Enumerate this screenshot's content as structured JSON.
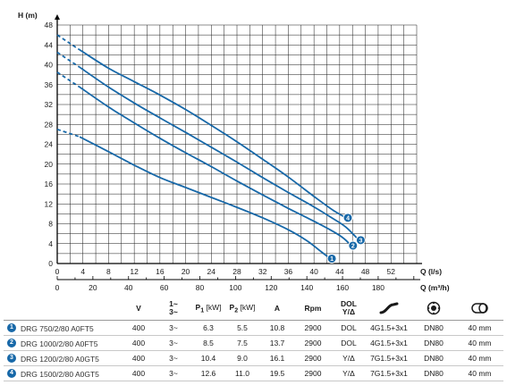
{
  "chart_data": {
    "type": "line",
    "ylabel": "H (m)",
    "xlabel": "Q (l/s)",
    "x2label": "Q (m³/h)",
    "xlim": [
      0,
      56
    ],
    "ylim": [
      0,
      48
    ],
    "xticks": [
      0,
      4,
      8,
      12,
      16,
      20,
      24,
      28,
      32,
      36,
      40,
      44,
      48,
      52
    ],
    "yticks": [
      0,
      4,
      8,
      12,
      16,
      20,
      24,
      28,
      32,
      36,
      40,
      44,
      48
    ],
    "x2ticks": [
      0,
      20,
      40,
      60,
      80,
      100,
      120,
      140,
      160,
      180
    ],
    "grid": true,
    "series": [
      {
        "badge": "1",
        "dashed": [
          [
            0,
            27
          ],
          [
            3.5,
            25.5
          ]
        ],
        "points": [
          [
            3.5,
            25.5
          ],
          [
            8,
            22.5
          ],
          [
            12,
            19.8
          ],
          [
            16,
            17.3
          ],
          [
            20,
            15.3
          ],
          [
            24,
            13.3
          ],
          [
            28,
            11.3
          ],
          [
            32,
            9.2
          ],
          [
            36,
            6.8
          ],
          [
            39,
            4.5
          ],
          [
            41,
            2.5
          ],
          [
            42.5,
            1.0
          ]
        ]
      },
      {
        "badge": "2",
        "dashed": [
          [
            0,
            38.5
          ],
          [
            3.5,
            35.5
          ]
        ],
        "points": [
          [
            3.5,
            35.5
          ],
          [
            8,
            31.5
          ],
          [
            12,
            28.3
          ],
          [
            16,
            25.2
          ],
          [
            20,
            22.3
          ],
          [
            24,
            19.5
          ],
          [
            28,
            16.6
          ],
          [
            32,
            13.8
          ],
          [
            36,
            11.1
          ],
          [
            40,
            8.5
          ],
          [
            42.5,
            6.8
          ],
          [
            44.5,
            5.2
          ],
          [
            45.8,
            3.6
          ]
        ]
      },
      {
        "badge": "3",
        "dashed": [
          [
            0,
            42.5
          ],
          [
            3.5,
            39.5
          ]
        ],
        "points": [
          [
            3.5,
            39.5
          ],
          [
            8,
            35.5
          ],
          [
            12,
            32.3
          ],
          [
            16,
            29.3
          ],
          [
            20,
            26.4
          ],
          [
            24,
            23.4
          ],
          [
            28,
            20.4
          ],
          [
            32,
            17.3
          ],
          [
            36,
            14.3
          ],
          [
            40,
            11.4
          ],
          [
            43,
            9.0
          ],
          [
            45,
            7.3
          ],
          [
            47,
            4.7
          ]
        ]
      },
      {
        "badge": "4",
        "dashed": [
          [
            0,
            46.0
          ],
          [
            3.5,
            43.0
          ]
        ],
        "points": [
          [
            3.5,
            43.0
          ],
          [
            8,
            39.3
          ],
          [
            12,
            36.6
          ],
          [
            16,
            33.9
          ],
          [
            20,
            31.0
          ],
          [
            24,
            27.8
          ],
          [
            28,
            24.5
          ],
          [
            32,
            21.0
          ],
          [
            36,
            17.4
          ],
          [
            40,
            13.5
          ],
          [
            43,
            10.7
          ],
          [
            45,
            9.2
          ]
        ]
      }
    ]
  },
  "table": {
    "headers": {
      "v": "V",
      "phase": [
        "1~",
        "3~"
      ],
      "p1": "P",
      "p1_sub": "1",
      "p1_unit": " [kW]",
      "p2": "P",
      "p2_sub": "2",
      "p2_unit": " [kW]",
      "a": "A",
      "rpm": "Rpm",
      "dol": [
        "DOL",
        "Y/Δ"
      ]
    },
    "icons": [
      "cable-icon",
      "discharge-flange-icon",
      "solids-passage-icon"
    ],
    "rows": [
      {
        "num": "1",
        "model": "DRG 750/2/80 A0FT5",
        "v": "400",
        "phase": "3~",
        "p1": "6.3",
        "p2": "5.5",
        "a": "10.8",
        "rpm": "2900",
        "start": "DOL",
        "cable": "4G1.5+3x1",
        "outlet": "DN80",
        "passage": "40 mm"
      },
      {
        "num": "2",
        "model": "DRG 1000/2/80 A0FT5",
        "v": "400",
        "phase": "3~",
        "p1": "8.5",
        "p2": "7.5",
        "a": "13.7",
        "rpm": "2900",
        "start": "DOL",
        "cable": "4G1.5+3x1",
        "outlet": "DN80",
        "passage": "40 mm"
      },
      {
        "num": "3",
        "model": "DRG 1200/2/80 A0GT5",
        "v": "400",
        "phase": "3~",
        "p1": "10.4",
        "p2": "9.0",
        "a": "16.1",
        "rpm": "2900",
        "start": "Y/Δ",
        "cable": "7G1.5+3x1",
        "outlet": "DN80",
        "passage": "40 mm"
      },
      {
        "num": "4",
        "model": "DRG 1500/2/80 A0GT5",
        "v": "400",
        "phase": "3~",
        "p1": "12.6",
        "p2": "11.0",
        "a": "19.5",
        "rpm": "2900",
        "start": "Y/Δ",
        "cable": "7G1.5+3x1",
        "outlet": "DN80",
        "passage": "40 mm"
      }
    ]
  },
  "colors": {
    "curve": "#1768a8",
    "badge": "#1768a8",
    "grid": "#1a1a1a"
  }
}
